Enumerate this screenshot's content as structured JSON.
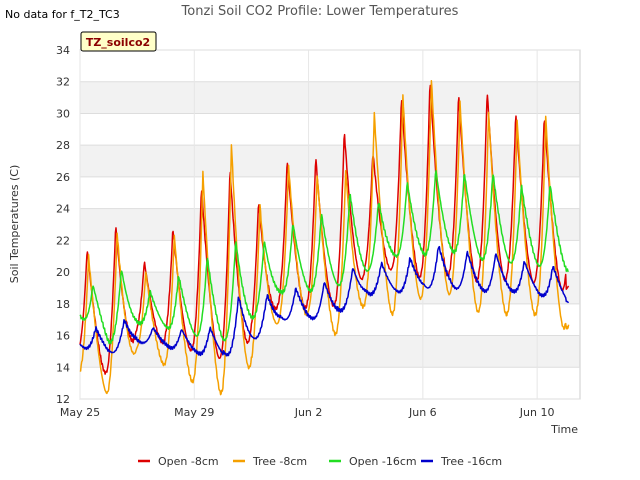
{
  "no_data_text": "No data for f_T2_TC3",
  "chart_data": {
    "type": "line",
    "title": "Tonzi Soil CO2 Profile: Lower Temperatures",
    "xlabel": "Time",
    "ylabel": "Soil Temperatures (C)",
    "badge": "TZ_soilco2",
    "ylim": [
      12,
      34
    ],
    "yticks": [
      12,
      14,
      16,
      18,
      20,
      22,
      24,
      26,
      28,
      30,
      32,
      34
    ],
    "xlim": [
      0,
      17.5
    ],
    "xticks": [
      {
        "value": 0,
        "label": "May 25"
      },
      {
        "value": 4,
        "label": "May 29"
      },
      {
        "value": 8,
        "label": "Jun 2"
      },
      {
        "value": 12,
        "label": "Jun 6"
      },
      {
        "value": 16,
        "label": "Jun 10"
      }
    ],
    "grid": true,
    "legend_position": "bottom",
    "series": [
      {
        "name": "Open -8cm",
        "color": "#dd0000",
        "days": [
          0.0,
          1,
          2,
          3,
          4,
          5,
          6,
          7,
          8,
          9,
          10,
          11,
          12,
          13,
          14,
          15,
          16,
          17,
          17.1
        ],
        "mins": [
          14.8,
          13.5,
          16.0,
          15.5,
          15.0,
          14.5,
          15.7,
          18.0,
          17.7,
          17.9,
          19.8,
          20.2,
          19.6,
          19.8,
          19.4,
          19.5,
          19.3,
          18.8
        ],
        "maxs": [
          21.5,
          23.0,
          20.7,
          22.8,
          25.4,
          26.5,
          24.5,
          27.1,
          27.3,
          28.9,
          27.6,
          31.0,
          32.1,
          31.3,
          31.5,
          30.0,
          29.9,
          19.8
        ],
        "peak_phase": 0.25
      },
      {
        "name": "Tree -8cm",
        "color": "#f5a000",
        "days": [
          0.0,
          1,
          2,
          3,
          4,
          5,
          6,
          7,
          8,
          9,
          10,
          11,
          12,
          13,
          14,
          15,
          16,
          17,
          17.1
        ],
        "mins": [
          13.5,
          12.3,
          15.1,
          14.1,
          13.0,
          12.3,
          14.1,
          17.0,
          17.3,
          16.0,
          18.0,
          17.3,
          18.4,
          18.6,
          17.4,
          17.3,
          17.3,
          16.4
        ],
        "maxs": [
          21.0,
          22.5,
          20.0,
          22.3,
          26.3,
          28.1,
          24.2,
          26.7,
          26.1,
          26.4,
          30.0,
          31.2,
          32.1,
          30.7,
          30.1,
          29.6,
          29.8,
          17.3
        ],
        "peak_phase": 0.3
      },
      {
        "name": "Open -16cm",
        "color": "#22dd22",
        "days": [
          0.0,
          1,
          2,
          3,
          4,
          5,
          6,
          7,
          8,
          9,
          10,
          11,
          12,
          13,
          14,
          15,
          16,
          17,
          17.1
        ],
        "mins": [
          17.2,
          15.5,
          16.8,
          16.5,
          16.0,
          15.6,
          17.0,
          18.7,
          18.8,
          19.1,
          20.0,
          21.0,
          21.1,
          21.3,
          20.8,
          20.6,
          20.4,
          20.1
        ],
        "maxs": [
          19.2,
          20.2,
          18.8,
          19.8,
          21.0,
          22.0,
          22.0,
          23.1,
          23.7,
          25.0,
          24.5,
          25.7,
          26.5,
          26.3,
          26.3,
          25.5,
          25.6,
          22.0
        ],
        "peak_phase": 0.45
      },
      {
        "name": "Tree -16cm",
        "color": "#0000cc",
        "days": [
          0.0,
          1,
          2,
          3,
          4,
          5,
          6,
          7,
          8,
          9,
          10,
          11,
          12,
          13,
          14,
          15,
          16,
          17,
          17.1
        ],
        "mins": [
          15.3,
          14.8,
          15.6,
          15.3,
          14.9,
          14.6,
          15.6,
          17.0,
          17.0,
          17.4,
          18.6,
          18.7,
          19.0,
          19.0,
          18.8,
          18.8,
          18.6,
          18.1
        ],
        "maxs": [
          16.5,
          17.0,
          16.5,
          16.4,
          16.5,
          18.5,
          18.6,
          19.0,
          19.4,
          20.3,
          20.6,
          20.9,
          21.7,
          21.3,
          21.2,
          20.7,
          20.4,
          18.6
        ],
        "peak_phase": 0.55
      }
    ]
  }
}
